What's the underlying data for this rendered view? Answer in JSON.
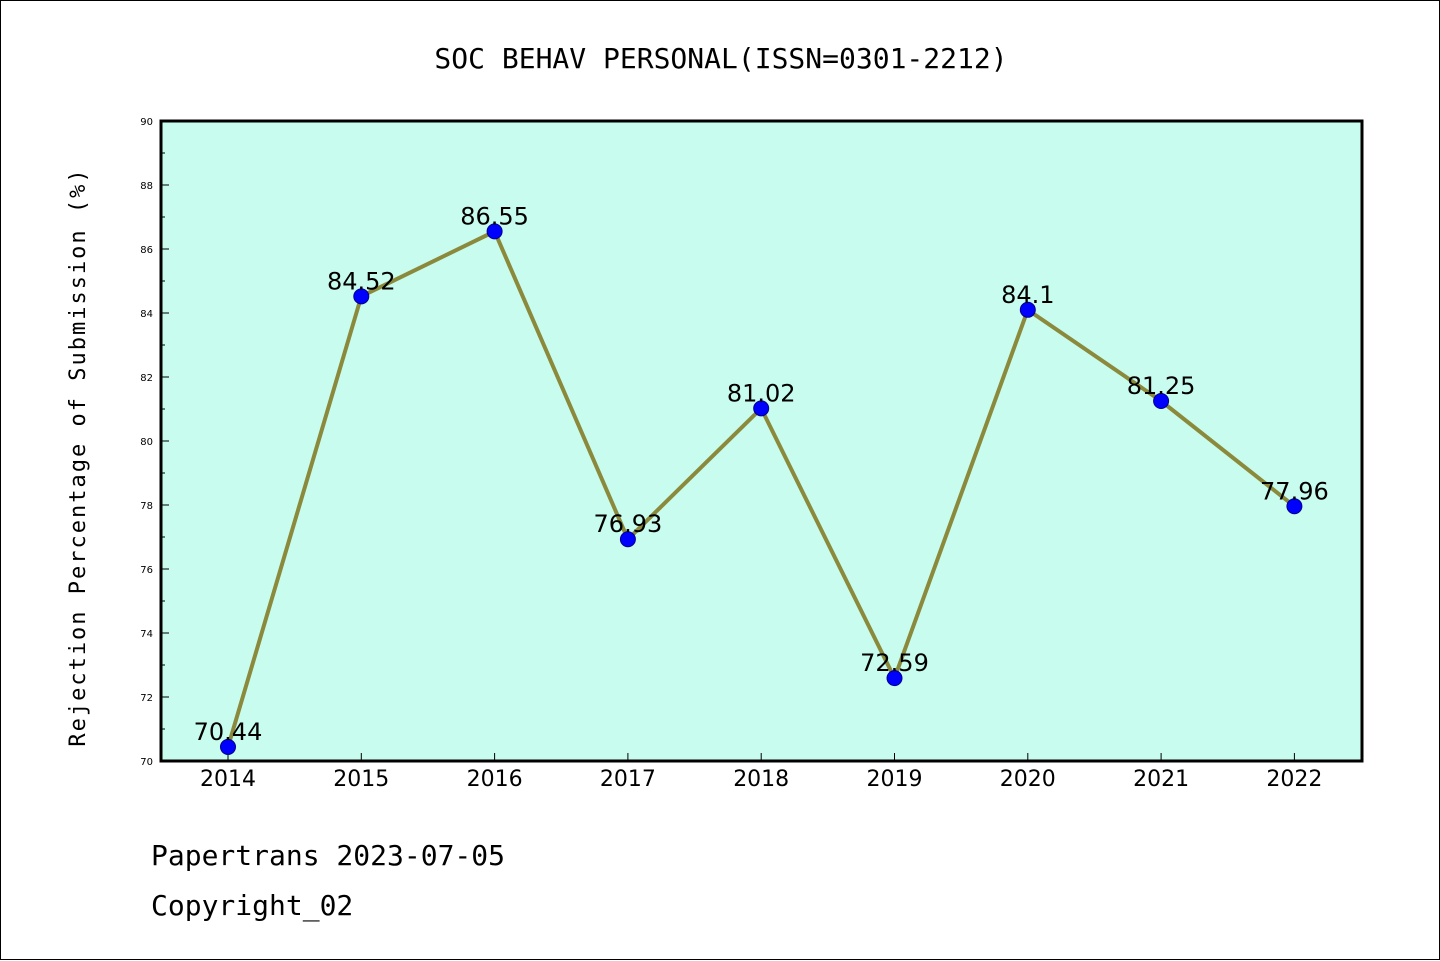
{
  "footer": {
    "line1": "Papertrans 2023-07-05",
    "line2": "Copyright_02"
  },
  "colors": {
    "plot_background": "#c8fcee",
    "line": "#8b8a3c",
    "marker": "#0000ff",
    "axis": "#000000"
  },
  "chart_data": {
    "type": "line",
    "title": "SOC BEHAV PERSONAL(ISSN=0301-2212)",
    "xlabel": "",
    "ylabel": "Rejection Percentage of Submission (%)",
    "categories": [
      "2014",
      "2015",
      "2016",
      "2017",
      "2018",
      "2019",
      "2020",
      "2021",
      "2022"
    ],
    "series": [
      {
        "values": [
          70.44,
          84.52,
          86.55,
          76.93,
          81.02,
          72.59,
          84.1,
          81.25,
          77.96
        ],
        "data_labels": [
          "70.44",
          "84.52",
          "86.55",
          "76.93",
          "81.02",
          "72.59",
          "84.1",
          "81.25",
          "77.96"
        ]
      }
    ],
    "ylim": [
      70,
      90
    ],
    "yticks": [
      "70",
      "72",
      "74",
      "76",
      "78",
      "80",
      "82",
      "84",
      "86",
      "88",
      "90"
    ],
    "grid": false,
    "legend": "none"
  }
}
